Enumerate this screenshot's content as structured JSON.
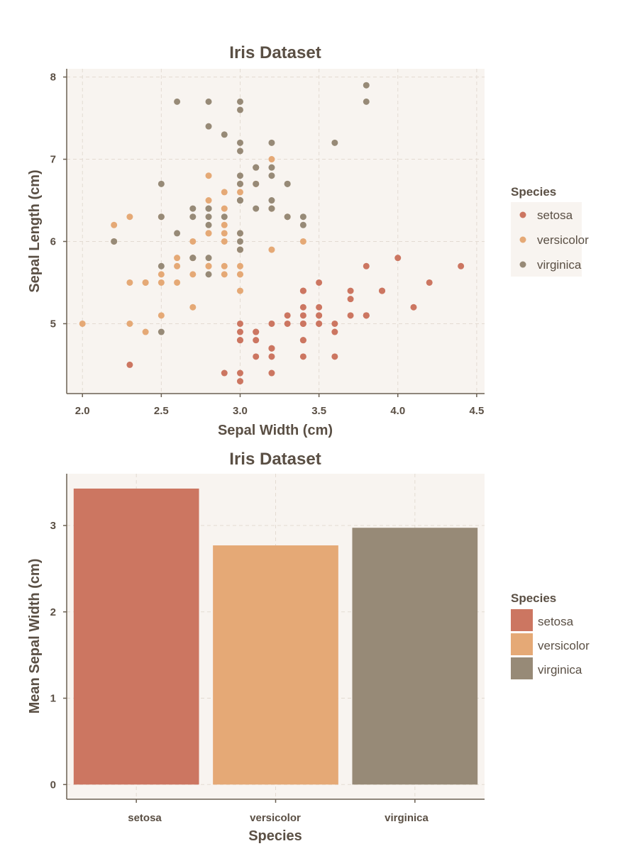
{
  "colors": {
    "background": "#ffffff",
    "panel": "#f8f4f0",
    "text": "#5a4f44",
    "grid": "#e3dbd2",
    "axis": "#6b6052",
    "setosa": "#cc7661",
    "versicolor": "#e5a976",
    "virginica": "#978a77"
  },
  "chart_data": [
    {
      "type": "scatter",
      "title": "Iris Dataset",
      "xlabel": "Sepal Width (cm)",
      "ylabel": "Sepal Length (cm)",
      "xlim": [
        1.9,
        4.55
      ],
      "ylim": [
        4.15,
        8.1
      ],
      "xticks": [
        "2.0",
        "2.5",
        "3.0",
        "3.5",
        "4.0",
        "4.5"
      ],
      "yticks": [
        "5",
        "6",
        "7",
        "8"
      ],
      "grid": true,
      "legend": {
        "title": "Species",
        "placement": "right",
        "entries": [
          "setosa",
          "versicolor",
          "virginica"
        ]
      },
      "series": [
        {
          "name": "setosa",
          "points": [
            [
              3.5,
              5.1
            ],
            [
              3.0,
              4.9
            ],
            [
              3.2,
              4.7
            ],
            [
              3.1,
              4.6
            ],
            [
              3.6,
              5.0
            ],
            [
              3.9,
              5.4
            ],
            [
              3.4,
              4.6
            ],
            [
              3.4,
              5.0
            ],
            [
              2.9,
              4.4
            ],
            [
              3.1,
              4.9
            ],
            [
              3.7,
              5.4
            ],
            [
              3.4,
              4.8
            ],
            [
              3.0,
              4.8
            ],
            [
              3.0,
              4.3
            ],
            [
              4.0,
              5.8
            ],
            [
              4.4,
              5.7
            ],
            [
              3.9,
              5.4
            ],
            [
              3.5,
              5.1
            ],
            [
              3.8,
              5.7
            ],
            [
              3.8,
              5.1
            ],
            [
              3.4,
              5.4
            ],
            [
              3.7,
              5.1
            ],
            [
              3.6,
              4.6
            ],
            [
              3.3,
              5.1
            ],
            [
              3.4,
              4.8
            ],
            [
              3.0,
              5.0
            ],
            [
              3.4,
              5.0
            ],
            [
              3.5,
              5.2
            ],
            [
              3.4,
              5.2
            ],
            [
              3.2,
              4.7
            ],
            [
              3.1,
              4.8
            ],
            [
              3.4,
              5.4
            ],
            [
              4.1,
              5.2
            ],
            [
              4.2,
              5.5
            ],
            [
              3.1,
              4.9
            ],
            [
              3.2,
              5.0
            ],
            [
              3.5,
              5.5
            ],
            [
              3.6,
              4.9
            ],
            [
              3.0,
              4.4
            ],
            [
              3.4,
              5.1
            ],
            [
              3.5,
              5.0
            ],
            [
              2.3,
              4.5
            ],
            [
              3.2,
              4.4
            ],
            [
              3.5,
              5.0
            ],
            [
              3.8,
              5.1
            ],
            [
              3.0,
              4.8
            ],
            [
              3.8,
              5.1
            ],
            [
              3.2,
              4.6
            ],
            [
              3.7,
              5.3
            ],
            [
              3.3,
              5.0
            ]
          ]
        },
        {
          "name": "versicolor",
          "points": [
            [
              3.2,
              7.0
            ],
            [
              3.2,
              6.4
            ],
            [
              3.1,
              6.9
            ],
            [
              2.3,
              5.5
            ],
            [
              2.8,
              6.5
            ],
            [
              2.8,
              5.7
            ],
            [
              3.3,
              6.3
            ],
            [
              2.4,
              4.9
            ],
            [
              2.9,
              6.6
            ],
            [
              2.7,
              5.2
            ],
            [
              2.0,
              5.0
            ],
            [
              3.0,
              5.9
            ],
            [
              2.2,
              6.0
            ],
            [
              2.9,
              6.1
            ],
            [
              2.9,
              5.6
            ],
            [
              3.1,
              6.7
            ],
            [
              3.0,
              5.6
            ],
            [
              2.7,
              5.8
            ],
            [
              2.2,
              6.2
            ],
            [
              2.5,
              5.6
            ],
            [
              3.2,
              5.9
            ],
            [
              2.8,
              6.1
            ],
            [
              2.5,
              6.3
            ],
            [
              2.8,
              6.1
            ],
            [
              2.9,
              6.4
            ],
            [
              3.0,
              6.6
            ],
            [
              2.8,
              6.8
            ],
            [
              3.0,
              6.7
            ],
            [
              2.9,
              6.0
            ],
            [
              2.6,
              5.7
            ],
            [
              2.4,
              5.5
            ],
            [
              2.4,
              5.5
            ],
            [
              2.7,
              5.8
            ],
            [
              2.7,
              6.0
            ],
            [
              3.0,
              5.4
            ],
            [
              3.4,
              6.0
            ],
            [
              3.1,
              6.7
            ],
            [
              2.3,
              6.3
            ],
            [
              3.0,
              5.6
            ],
            [
              2.5,
              5.5
            ],
            [
              2.6,
              5.5
            ],
            [
              3.0,
              6.1
            ],
            [
              2.6,
              5.8
            ],
            [
              2.3,
              5.0
            ],
            [
              2.7,
              5.6
            ],
            [
              3.0,
              5.7
            ],
            [
              2.9,
              5.7
            ],
            [
              2.9,
              6.2
            ],
            [
              2.5,
              5.1
            ],
            [
              2.8,
              5.7
            ]
          ]
        },
        {
          "name": "virginica",
          "points": [
            [
              3.3,
              6.3
            ],
            [
              2.7,
              5.8
            ],
            [
              3.0,
              7.1
            ],
            [
              2.9,
              6.3
            ],
            [
              3.0,
              6.5
            ],
            [
              3.0,
              7.6
            ],
            [
              2.5,
              4.9
            ],
            [
              2.9,
              7.3
            ],
            [
              2.5,
              6.7
            ],
            [
              3.6,
              7.2
            ],
            [
              3.2,
              6.5
            ],
            [
              2.7,
              6.4
            ],
            [
              3.0,
              6.8
            ],
            [
              2.5,
              5.7
            ],
            [
              2.8,
              5.8
            ],
            [
              3.2,
              6.4
            ],
            [
              3.0,
              6.5
            ],
            [
              3.8,
              7.7
            ],
            [
              2.6,
              7.7
            ],
            [
              2.2,
              6.0
            ],
            [
              3.2,
              6.9
            ],
            [
              2.8,
              5.6
            ],
            [
              2.8,
              7.7
            ],
            [
              2.7,
              6.3
            ],
            [
              3.3,
              6.7
            ],
            [
              3.2,
              7.2
            ],
            [
              2.8,
              6.2
            ],
            [
              3.0,
              6.1
            ],
            [
              2.8,
              6.4
            ],
            [
              3.0,
              7.2
            ],
            [
              2.8,
              7.4
            ],
            [
              3.8,
              7.9
            ],
            [
              2.8,
              6.4
            ],
            [
              2.8,
              6.3
            ],
            [
              2.6,
              6.1
            ],
            [
              3.0,
              7.7
            ],
            [
              3.4,
              6.3
            ],
            [
              3.1,
              6.4
            ],
            [
              3.0,
              6.0
            ],
            [
              3.1,
              6.9
            ],
            [
              3.1,
              6.7
            ],
            [
              3.1,
              6.9
            ],
            [
              2.7,
              5.8
            ],
            [
              3.2,
              6.8
            ],
            [
              3.3,
              6.7
            ],
            [
              3.0,
              6.7
            ],
            [
              2.5,
              6.3
            ],
            [
              3.0,
              6.5
            ],
            [
              3.4,
              6.2
            ],
            [
              3.0,
              5.9
            ]
          ]
        }
      ]
    },
    {
      "type": "bar",
      "title": "Iris Dataset",
      "xlabel": "Species",
      "ylabel": "Mean Sepal Width (cm)",
      "categories": [
        "setosa",
        "versicolor",
        "virginica"
      ],
      "values": [
        3.428,
        2.77,
        2.974
      ],
      "ylim": [
        -0.17,
        3.6
      ],
      "yticks": [
        "0",
        "1",
        "2",
        "3"
      ],
      "grid": true,
      "legend": {
        "title": "Species",
        "placement": "right",
        "entries": [
          "setosa",
          "versicolor",
          "virginica"
        ]
      }
    }
  ]
}
